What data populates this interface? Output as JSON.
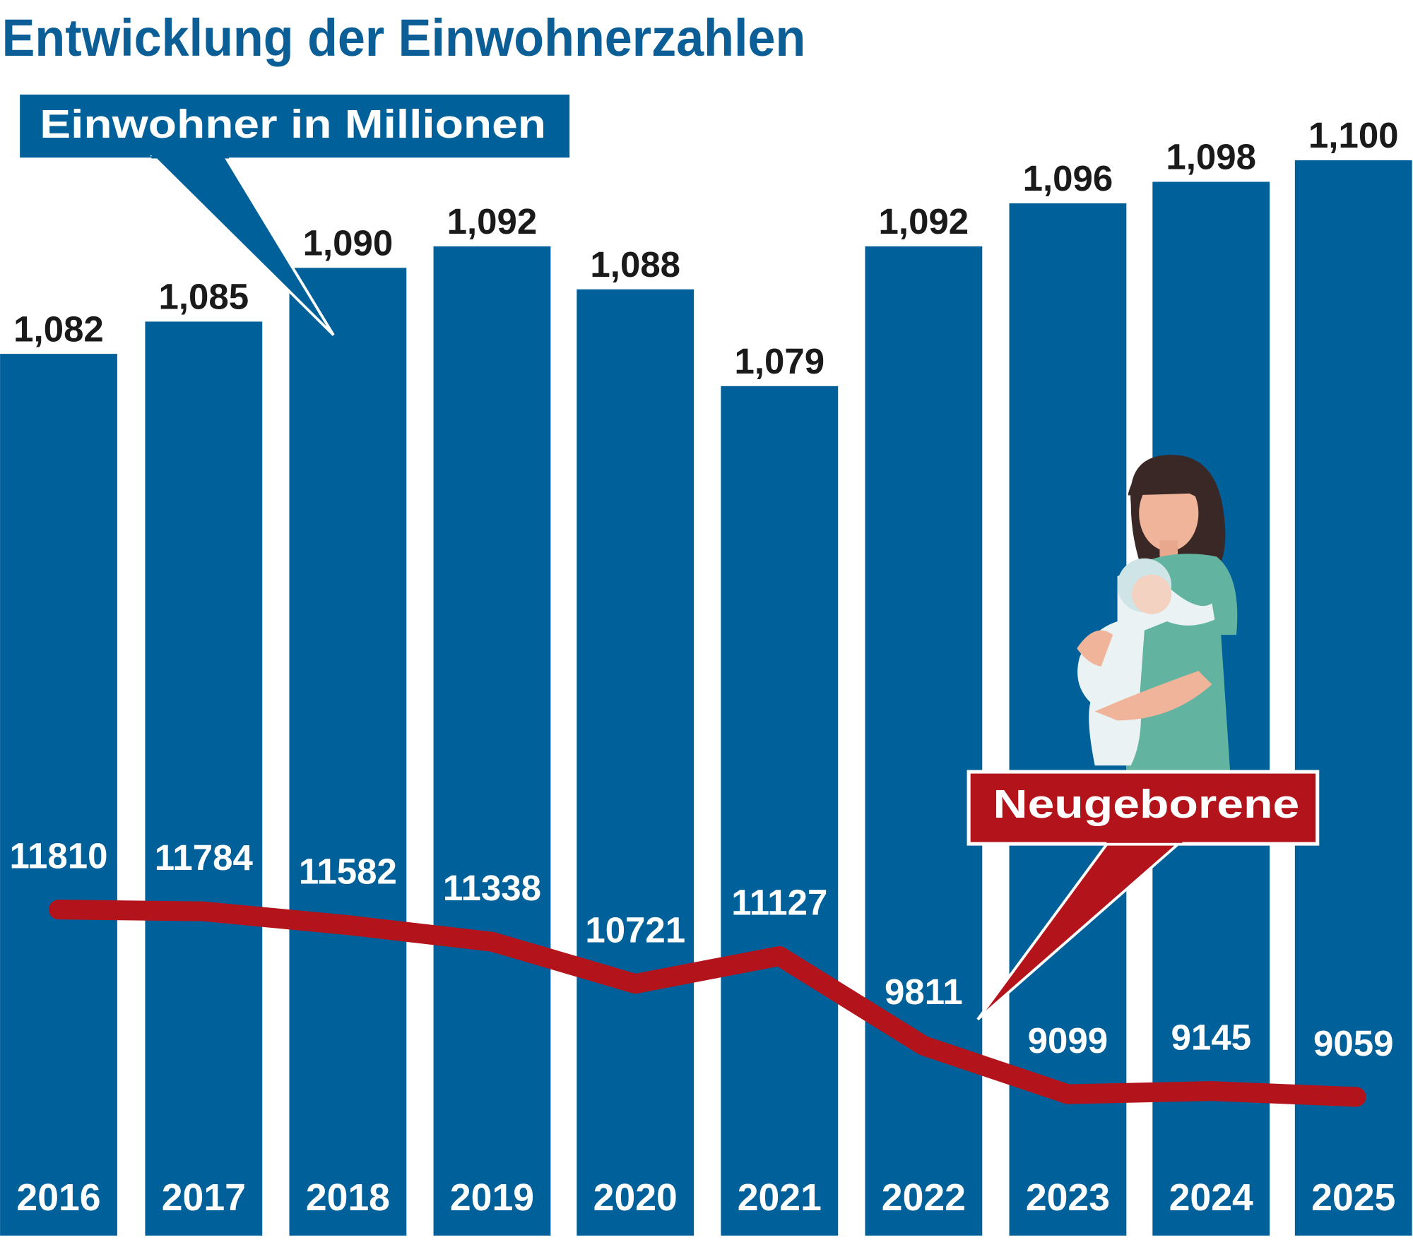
{
  "chart_data": {
    "type": "bar",
    "title": "Entwicklung der Einwohnerzahlen",
    "categories": [
      "2016",
      "2017",
      "2018",
      "2019",
      "2020",
      "2021",
      "2022",
      "2023",
      "2024",
      "2025"
    ],
    "series": [
      {
        "name": "Einwohner in Millionen",
        "type": "bar",
        "values": [
          1.082,
          1.085,
          1.09,
          1.092,
          1.088,
          1.079,
          1.092,
          1.096,
          1.098,
          1.1
        ],
        "labels": [
          "1,082",
          "1,085",
          "1,090",
          "1,092",
          "1,088",
          "1,079",
          "1,092",
          "1,096",
          "1,098",
          "1,100"
        ]
      },
      {
        "name": "Neugeborene",
        "type": "line",
        "values": [
          11810,
          11784,
          11582,
          11338,
          10721,
          11127,
          9811,
          9099,
          9145,
          9059
        ],
        "labels": [
          "11810",
          "11784",
          "11582",
          "11338",
          "10721",
          "11127",
          "9811",
          "9099",
          "9145",
          "9059"
        ]
      }
    ],
    "ylim": [
      1.0,
      1.1
    ],
    "grid": false,
    "colors": {
      "bar": "#00609a",
      "line": "#b3131b",
      "title": "#0b5e96"
    }
  }
}
